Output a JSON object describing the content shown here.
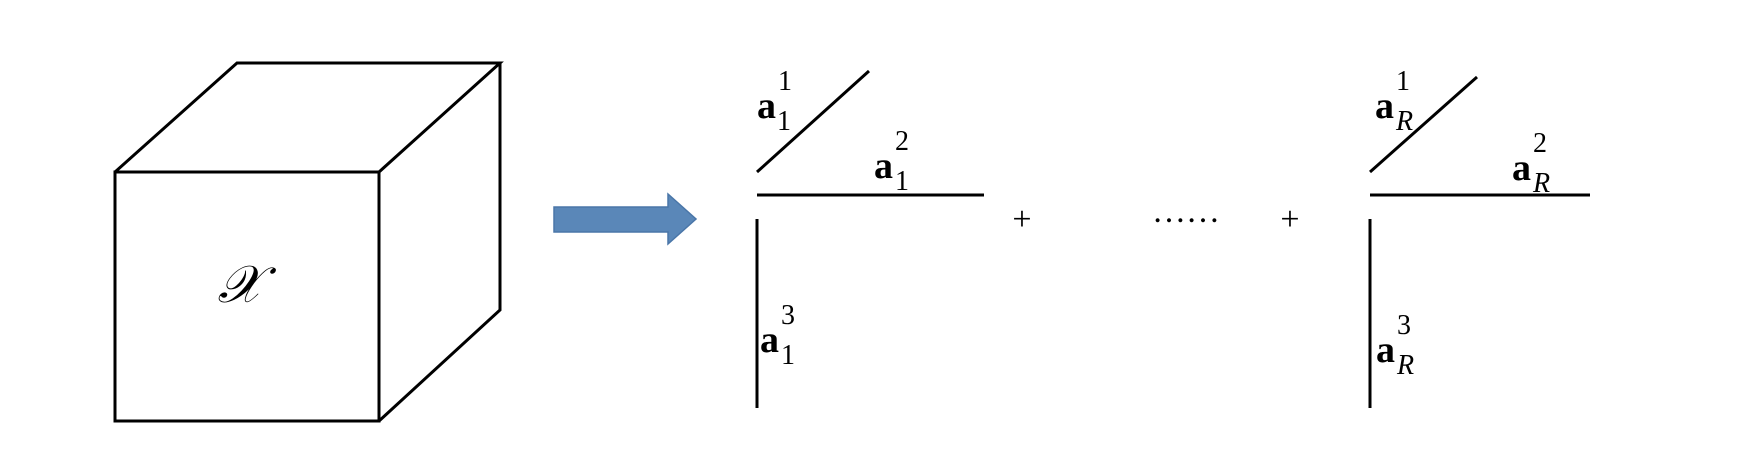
{
  "cube": {
    "label": "𝒳"
  },
  "arrow": {
    "color": "#5a87b8",
    "stroke": "#4a76a8"
  },
  "terms": [
    {
      "id": "first",
      "vectors": [
        {
          "base": "a",
          "sub": "1",
          "sup": "1"
        },
        {
          "base": "a",
          "sub": "1",
          "sup": "2"
        },
        {
          "base": "a",
          "sub": "1",
          "sup": "3"
        }
      ]
    },
    {
      "id": "last",
      "vectors": [
        {
          "base": "a",
          "sub": "R",
          "sup": "1"
        },
        {
          "base": "a",
          "sub": "R",
          "sup": "2"
        },
        {
          "base": "a",
          "sub": "R",
          "sup": "3"
        }
      ]
    }
  ],
  "operators": {
    "plus_1": "+",
    "ellipsis": "……",
    "plus_2": "+"
  }
}
